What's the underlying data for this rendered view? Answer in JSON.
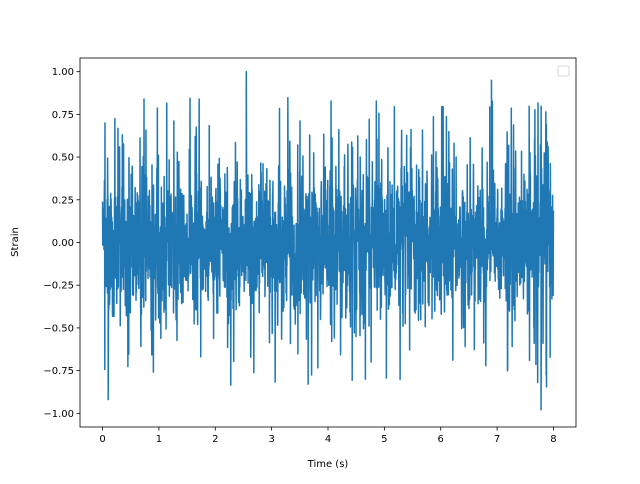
{
  "chart_data": {
    "type": "line",
    "title": "",
    "xlabel": "Time (s)",
    "ylabel": "Strain",
    "xlim": [
      -0.4,
      8.4
    ],
    "ylim": [
      -1.08,
      1.08
    ],
    "xticks": [
      0,
      1,
      2,
      3,
      4,
      5,
      6,
      7,
      8
    ],
    "xtick_labels": [
      "0",
      "1",
      "2",
      "3",
      "4",
      "5",
      "6",
      "7",
      "8"
    ],
    "yticks": [
      -1.0,
      -0.75,
      -0.5,
      -0.25,
      0.0,
      0.25,
      0.5,
      0.75,
      1.0
    ],
    "ytick_labels": [
      "−1.00",
      "−0.75",
      "−0.50",
      "−0.25",
      "0.00",
      "0.25",
      "0.50",
      "0.75",
      "1.00"
    ],
    "grid": false,
    "legend": {
      "placement": "top-right",
      "entries": []
    },
    "series": [
      {
        "color": "#1f77b4",
        "x_range": [
          0,
          8
        ],
        "typical_amplitude": 0.45,
        "peak_max": 1.0,
        "peak_min": -0.98,
        "description": "dense noise-like strain signal sampled across 0–8 s"
      }
    ]
  }
}
